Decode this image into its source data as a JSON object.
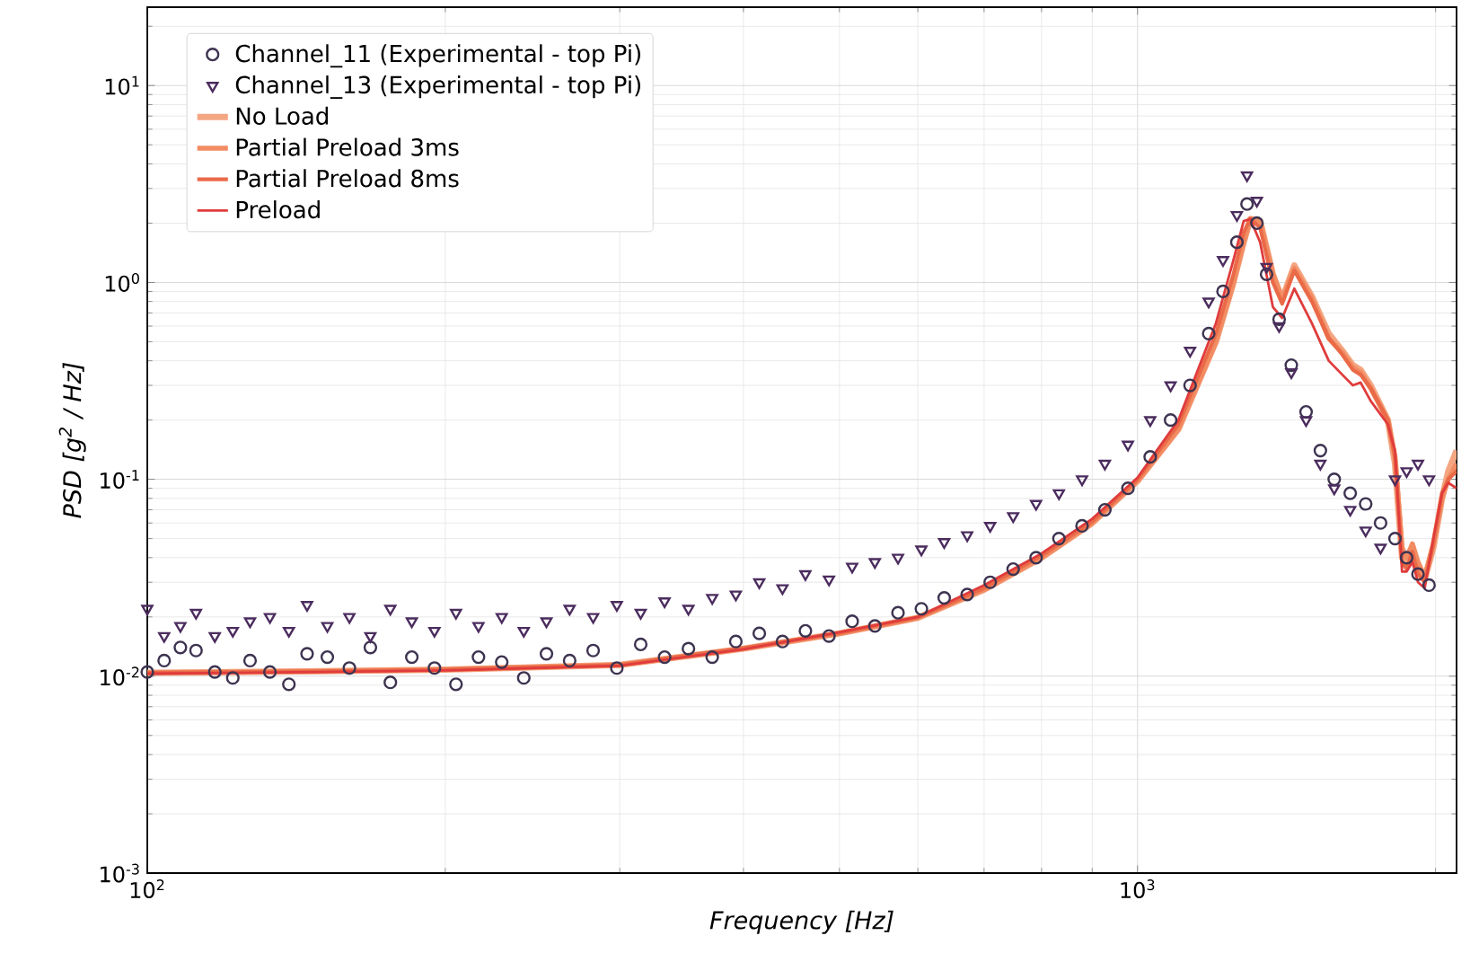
{
  "chart_data": {
    "type": "scatter",
    "xlabel": "Frequency [Hz]",
    "ylabel": "PSD [g$^{2}$ / Hz]",
    "log": "xy",
    "grid": true,
    "legend": "top left",
    "xlim": [
      100,
      2100
    ],
    "ylim": [
      0.001,
      25
    ],
    "xticks": [
      {
        "value": 100,
        "label": "10$^{2}$"
      },
      {
        "value": 1000,
        "label": "10$^{3}$"
      }
    ],
    "yticks": [
      {
        "value": 0.001,
        "label": "10$^{-3}$"
      },
      {
        "value": 0.01,
        "label": "10$^{-2}$"
      },
      {
        "value": 0.1,
        "label": "10$^{-1}$"
      },
      {
        "value": 1,
        "label": "10$^{0}$"
      },
      {
        "value": 10,
        "label": "10$^{1}$"
      }
    ],
    "series": [
      {
        "name": "Channel_11 (Experimental - top Pi)",
        "marker": "circle",
        "color": "#3d3350",
        "x": [
          100,
          104,
          108,
          112,
          117,
          122,
          127,
          133,
          139,
          145,
          152,
          160,
          168,
          176,
          185,
          195,
          205,
          216,
          228,
          240,
          253,
          267,
          282,
          298,
          315,
          333,
          352,
          372,
          393,
          415,
          438,
          462,
          488,
          515,
          543,
          573,
          605,
          638,
          673,
          710,
          749,
          790,
          833,
          879,
          927,
          978,
          1030,
          1080,
          1130,
          1180,
          1220,
          1260,
          1290,
          1320,
          1350,
          1390,
          1430,
          1480,
          1530,
          1580,
          1640,
          1700,
          1760,
          1820,
          1870,
          1920,
          1970
        ],
        "values": [
          0.0105,
          0.012,
          0.014,
          0.0135,
          0.0105,
          0.0098,
          0.012,
          0.0105,
          0.0091,
          0.013,
          0.0125,
          0.011,
          0.014,
          0.0093,
          0.0125,
          0.011,
          0.0091,
          0.0125,
          0.0118,
          0.0098,
          0.013,
          0.012,
          0.0135,
          0.011,
          0.0145,
          0.0125,
          0.0138,
          0.0125,
          0.015,
          0.0165,
          0.015,
          0.017,
          0.016,
          0.019,
          0.018,
          0.021,
          0.022,
          0.025,
          0.026,
          0.03,
          0.035,
          0.04,
          0.05,
          0.058,
          0.07,
          0.09,
          0.13,
          0.2,
          0.3,
          0.55,
          0.9,
          1.6,
          2.5,
          2.0,
          1.1,
          0.65,
          0.38,
          0.22,
          0.14,
          0.1,
          0.085,
          0.075,
          0.06,
          0.05,
          0.04,
          0.033,
          0.029
        ]
      },
      {
        "name": "Channel_13 (Experimental - top Pi)",
        "marker": "triangle",
        "color": "#4b2c5e",
        "x": [
          100,
          104,
          108,
          112,
          117,
          122,
          127,
          133,
          139,
          145,
          152,
          160,
          168,
          176,
          185,
          195,
          205,
          216,
          228,
          240,
          253,
          267,
          282,
          298,
          315,
          333,
          352,
          372,
          393,
          415,
          438,
          462,
          488,
          515,
          543,
          573,
          605,
          638,
          673,
          710,
          749,
          790,
          833,
          879,
          927,
          978,
          1030,
          1080,
          1130,
          1180,
          1220,
          1260,
          1290,
          1320,
          1350,
          1390,
          1430,
          1480,
          1530,
          1580,
          1640,
          1700,
          1760,
          1820,
          1870,
          1920,
          1970
        ],
        "values": [
          0.022,
          0.016,
          0.018,
          0.021,
          0.016,
          0.017,
          0.019,
          0.02,
          0.017,
          0.023,
          0.018,
          0.02,
          0.016,
          0.022,
          0.019,
          0.017,
          0.021,
          0.018,
          0.02,
          0.017,
          0.019,
          0.022,
          0.02,
          0.023,
          0.021,
          0.024,
          0.022,
          0.025,
          0.026,
          0.03,
          0.028,
          0.033,
          0.031,
          0.036,
          0.038,
          0.04,
          0.044,
          0.048,
          0.052,
          0.058,
          0.065,
          0.075,
          0.085,
          0.1,
          0.12,
          0.15,
          0.2,
          0.3,
          0.45,
          0.8,
          1.3,
          2.2,
          3.5,
          2.6,
          1.2,
          0.6,
          0.35,
          0.2,
          0.12,
          0.09,
          0.07,
          0.055,
          0.045,
          0.1,
          0.11,
          0.12,
          0.1
        ]
      },
      {
        "name": "No Load",
        "type": "line",
        "marker": "none",
        "color": "#f4a683",
        "x": [
          100,
          150,
          200,
          300,
          400,
          500,
          600,
          700,
          800,
          900,
          1000,
          1100,
          1200,
          1250,
          1280,
          1300,
          1330,
          1370,
          1400,
          1440,
          1500,
          1560,
          1610,
          1650,
          1680,
          1720,
          1790,
          1820,
          1850,
          1870,
          1895,
          1920,
          1950,
          1990,
          2030,
          2060,
          2100
        ],
        "values": [
          0.0104,
          0.0106,
          0.0108,
          0.0114,
          0.0138,
          0.0165,
          0.0198,
          0.0275,
          0.04,
          0.06,
          0.098,
          0.18,
          0.5,
          1.0,
          1.6,
          2.1,
          2.05,
          1.1,
          0.82,
          1.22,
          0.85,
          0.55,
          0.45,
          0.38,
          0.36,
          0.3,
          0.2,
          0.12,
          0.04,
          0.036,
          0.045,
          0.036,
          0.031,
          0.045,
          0.08,
          0.11,
          0.14
        ]
      },
      {
        "name": "Partial Preload 3ms",
        "type": "line",
        "marker": "none",
        "color": "#f28c62",
        "x": [
          100,
          150,
          200,
          300,
          400,
          500,
          600,
          700,
          800,
          900,
          1000,
          1100,
          1200,
          1250,
          1280,
          1300,
          1330,
          1370,
          1400,
          1440,
          1500,
          1560,
          1610,
          1650,
          1680,
          1720,
          1790,
          1820,
          1850,
          1870,
          1895,
          1920,
          1950,
          1990,
          2030,
          2060,
          2100
        ],
        "values": [
          0.0104,
          0.0106,
          0.0108,
          0.0114,
          0.0138,
          0.0165,
          0.0198,
          0.0275,
          0.04,
          0.06,
          0.098,
          0.18,
          0.5,
          1.0,
          1.6,
          2.1,
          2.05,
          1.1,
          0.82,
          1.18,
          0.83,
          0.52,
          0.44,
          0.37,
          0.35,
          0.29,
          0.2,
          0.13,
          0.045,
          0.04,
          0.047,
          0.038,
          0.032,
          0.047,
          0.08,
          0.1,
          0.12
        ]
      },
      {
        "name": "Partial Preload 8ms",
        "type": "line",
        "marker": "none",
        "color": "#ea6a48",
        "x": [
          100,
          150,
          200,
          300,
          400,
          500,
          600,
          700,
          800,
          900,
          1000,
          1100,
          1200,
          1250,
          1280,
          1300,
          1330,
          1370,
          1400,
          1440,
          1500,
          1560,
          1610,
          1650,
          1680,
          1720,
          1790,
          1820,
          1850,
          1870,
          1895,
          1920,
          1950,
          1990,
          2030,
          2060,
          2100
        ],
        "values": [
          0.0104,
          0.0106,
          0.0108,
          0.0114,
          0.0139,
          0.0166,
          0.0199,
          0.028,
          0.041,
          0.061,
          0.1,
          0.19,
          0.55,
          1.1,
          1.8,
          2.1,
          1.9,
          1.0,
          0.78,
          1.15,
          0.8,
          0.52,
          0.43,
          0.36,
          0.34,
          0.29,
          0.2,
          0.13,
          0.038,
          0.035,
          0.043,
          0.033,
          0.03,
          0.047,
          0.085,
          0.1,
          0.11
        ]
      },
      {
        "name": "Preload",
        "type": "line",
        "marker": "none",
        "color": "#e03c3c",
        "x": [
          100,
          150,
          200,
          300,
          400,
          500,
          600,
          700,
          800,
          900,
          1000,
          1100,
          1200,
          1250,
          1280,
          1300,
          1330,
          1370,
          1400,
          1440,
          1500,
          1560,
          1610,
          1650,
          1680,
          1720,
          1790,
          1820,
          1850,
          1870,
          1895,
          1920,
          1950,
          1990,
          2030,
          2060,
          2100
        ],
        "values": [
          0.0103,
          0.0105,
          0.0107,
          0.0113,
          0.0137,
          0.0167,
          0.02,
          0.029,
          0.042,
          0.063,
          0.102,
          0.2,
          0.62,
          1.3,
          2.05,
          2.1,
          1.6,
          0.75,
          0.66,
          0.93,
          0.62,
          0.4,
          0.34,
          0.3,
          0.31,
          0.25,
          0.19,
          0.14,
          0.034,
          0.034,
          0.038,
          0.03,
          0.028,
          0.05,
          0.085,
          0.096,
          0.09
        ]
      }
    ]
  }
}
